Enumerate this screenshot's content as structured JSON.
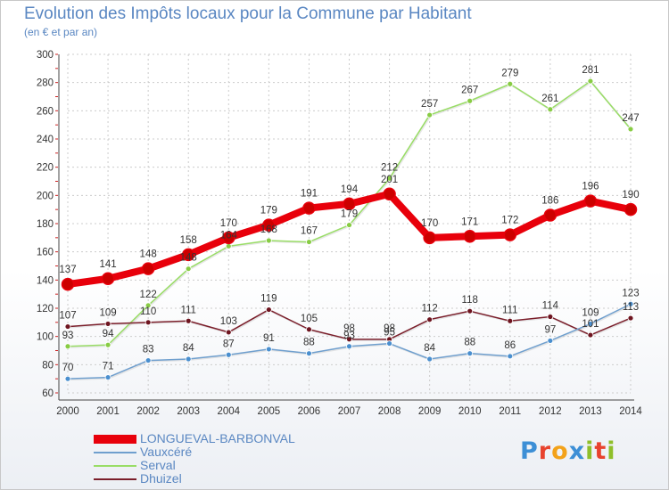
{
  "header": {
    "title": "Evolution des Impôts locaux pour la Commune par Habitant",
    "subtitle": "(en € et par an)"
  },
  "logo": {
    "text": "Proxiti",
    "letters": [
      "P",
      "r",
      "o",
      "x",
      "i",
      "t",
      "i"
    ],
    "colors": [
      "#3d8fd6",
      "#e8432e",
      "#f3a21a",
      "#3d8fd6",
      "#8fbf2a",
      "#e8432e",
      "#8fbf2a"
    ]
  },
  "chart_data": {
    "type": "line",
    "title": "Evolution des Impôts locaux pour la Commune par Habitant",
    "subtitle": "(en € et par an)",
    "xlabel": "",
    "ylabel": "",
    "x": [
      "2000",
      "2001",
      "2002",
      "2003",
      "2004",
      "2005",
      "2006",
      "2007",
      "2008",
      "2009",
      "2010",
      "2011",
      "2012",
      "2013",
      "2014"
    ],
    "ylim": [
      60,
      300
    ],
    "yticks": [
      60,
      80,
      100,
      120,
      140,
      160,
      180,
      200,
      220,
      240,
      260,
      280,
      300
    ],
    "grid": true,
    "legend_position": "bottom-left",
    "series": [
      {
        "name": "LONGUEVAL-BARBONVAL",
        "color": "#e8000b",
        "marker_color": "#cc0000",
        "values": [
          137,
          141,
          148,
          158,
          170,
          179,
          191,
          194,
          201,
          170,
          171,
          172,
          186,
          196,
          190
        ]
      },
      {
        "name": "Vauxcéré",
        "color": "#6f9fce",
        "marker_color": "#4a8fcf",
        "values": [
          70,
          71,
          83,
          84,
          87,
          91,
          88,
          93,
          95,
          84,
          88,
          86,
          97,
          109,
          123
        ]
      },
      {
        "name": "Serval",
        "color": "#99dd66",
        "marker_color": "#88cc44",
        "values": [
          93,
          94,
          122,
          148,
          164,
          168,
          167,
          179,
          212,
          257,
          267,
          279,
          261,
          281,
          247
        ]
      },
      {
        "name": "Dhuizel",
        "color": "#7b1f2b",
        "marker_color": "#6e1520",
        "values": [
          107,
          109,
          110,
          111,
          103,
          119,
          105,
          98,
          98,
          112,
          118,
          111,
          114,
          101,
          113
        ]
      }
    ],
    "data_labels": {
      "LONGUEVAL-BARBONVAL": [
        "137",
        "141",
        "148",
        "158",
        "170",
        "179",
        "191",
        "194",
        "201",
        "170",
        "171",
        "172",
        "186",
        "196",
        "190"
      ],
      "Vauxcéré": [
        "70",
        "71",
        "83",
        "84",
        "87",
        "91",
        "88",
        "93",
        "95",
        "84",
        "88",
        "86",
        "97",
        "109",
        "123"
      ],
      "Serval": [
        "93",
        "94",
        "122",
        "148",
        "164",
        "168",
        "167",
        "179",
        "212",
        "257",
        "267",
        "279",
        "261",
        "281",
        "247"
      ],
      "Dhuizel": [
        "107",
        "109",
        "110",
        "111",
        "103",
        "119",
        "105",
        "98",
        "98",
        "112",
        "118",
        "111",
        "114",
        "101",
        "113"
      ]
    }
  }
}
